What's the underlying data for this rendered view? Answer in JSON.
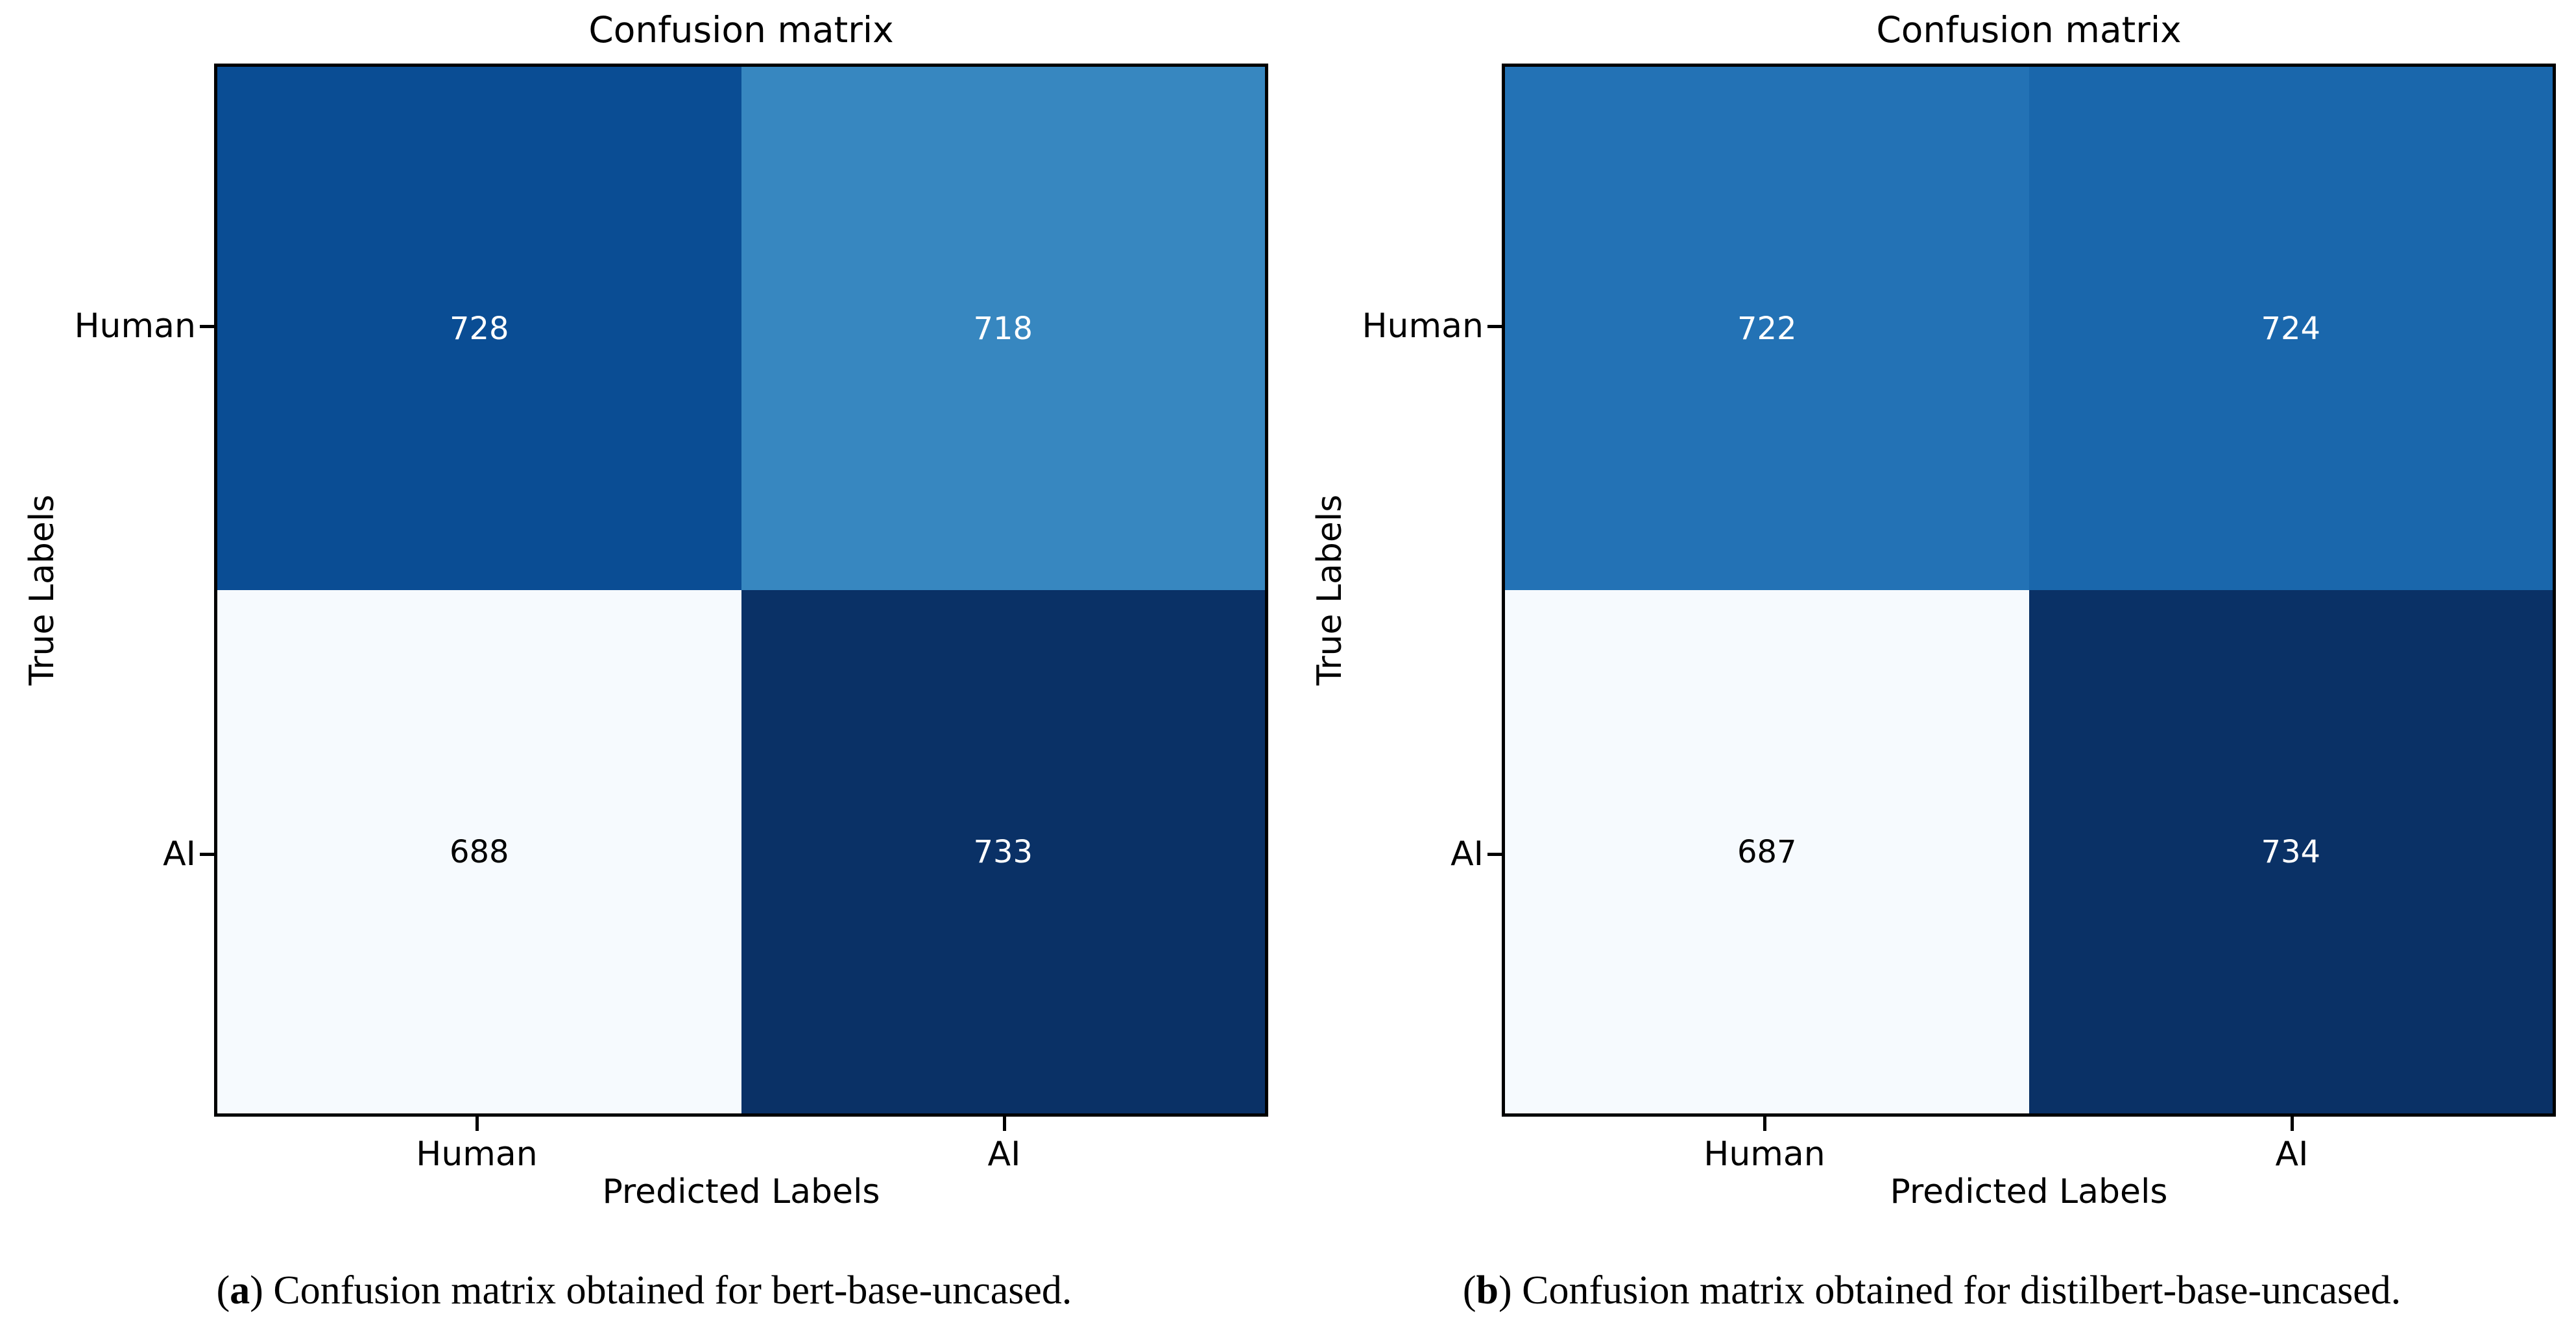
{
  "colors": {
    "background": "#ffffff",
    "spine": "#000000",
    "colormap_low": "#f7fbff",
    "colormap_high": "#08306b"
  },
  "panels": [
    {
      "title": "Confusion matrix",
      "ylabel": "True Labels",
      "xlabel": "Predicted Labels",
      "yticks": {
        "row0": "Human",
        "row1": "AI"
      },
      "xticks": {
        "col0": "Human",
        "col1": "AI"
      },
      "cells": [
        {
          "value": "728",
          "bg": "#0a4d94",
          "fg": "#ffffff"
        },
        {
          "value": "718",
          "bg": "#3787c0",
          "fg": "#ffffff"
        },
        {
          "value": "688",
          "bg": "#f6fafe",
          "fg": "#000000"
        },
        {
          "value": "733",
          "bg": "#0a3166",
          "fg": "#ffffff"
        }
      ],
      "caption": {
        "label": "a",
        "text": " Confusion matrix obtained for bert-base-uncased."
      }
    },
    {
      "title": "Confusion matrix",
      "ylabel": "True Labels",
      "xlabel": "Predicted Labels",
      "yticks": {
        "row0": "Human",
        "row1": "AI"
      },
      "xticks": {
        "col0": "Human",
        "col1": "AI"
      },
      "cells": [
        {
          "value": "722",
          "bg": "#2372b5",
          "fg": "#ffffff"
        },
        {
          "value": "724",
          "bg": "#1a67ac",
          "fg": "#ffffff"
        },
        {
          "value": "687",
          "bg": "#f6fafe",
          "fg": "#000000"
        },
        {
          "value": "734",
          "bg": "#0a3166",
          "fg": "#ffffff"
        }
      ],
      "caption": {
        "label": "b",
        "text": " Confusion matrix obtained for distilbert-base-uncased."
      }
    }
  ],
  "chart_data": [
    {
      "type": "heatmap",
      "title": "Confusion matrix",
      "xlabel": "Predicted Labels",
      "ylabel": "True Labels",
      "x_categories": [
        "Human",
        "AI"
      ],
      "y_categories": [
        "Human",
        "AI"
      ],
      "values": [
        [
          728,
          718
        ],
        [
          688,
          733
        ]
      ],
      "colormap": "Blues",
      "legend": "none",
      "grid": false,
      "caption": "(a) Confusion matrix obtained for bert-base-uncased."
    },
    {
      "type": "heatmap",
      "title": "Confusion matrix",
      "xlabel": "Predicted Labels",
      "ylabel": "True Labels",
      "x_categories": [
        "Human",
        "AI"
      ],
      "y_categories": [
        "Human",
        "AI"
      ],
      "values": [
        [
          722,
          724
        ],
        [
          687,
          734
        ]
      ],
      "colormap": "Blues",
      "legend": "none",
      "grid": false,
      "caption": "(b) Confusion matrix obtained for distilbert-base-uncased."
    }
  ]
}
